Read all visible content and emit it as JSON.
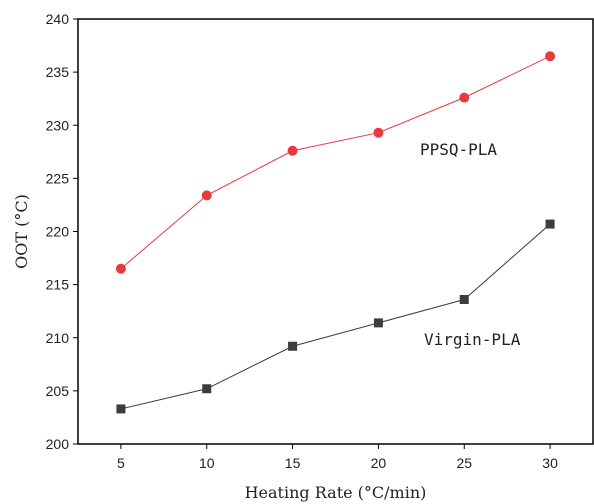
{
  "chart_data": {
    "type": "line",
    "title": "",
    "xlabel": "Heating Rate (°C/min)",
    "ylabel": "OOT (°C)",
    "x": [
      5,
      10,
      15,
      20,
      25,
      30
    ],
    "xlim": [
      2.5,
      32.5
    ],
    "ylim": [
      200,
      240
    ],
    "xticks": [
      5,
      10,
      15,
      20,
      25,
      30
    ],
    "yticks": [
      200,
      205,
      210,
      215,
      220,
      225,
      230,
      235,
      240
    ],
    "grid": false,
    "legend": "none",
    "series": [
      {
        "name": "PPSQ-PLA",
        "values": [
          216.5,
          223.4,
          227.6,
          229.3,
          232.6,
          236.5
        ],
        "color": "#e8393f",
        "marker": "circle"
      },
      {
        "name": "Virgin-PLA",
        "values": [
          203.3,
          205.2,
          209.2,
          211.4,
          213.6,
          220.7
        ],
        "color": "#3d3d3d",
        "marker": "square"
      }
    ]
  }
}
